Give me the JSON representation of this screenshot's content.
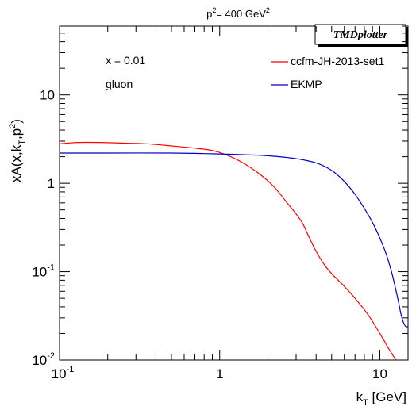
{
  "chart_data": {
    "type": "line",
    "title_base": "p",
    "title_sup": "2",
    "title_rest": "= 400 GeV",
    "title_sup2": "2",
    "badge": "TMDplotter",
    "xlabel_base": "k",
    "xlabel_sub": "T",
    "xlabel_rest": " [GeV]",
    "ylabel_parts": [
      "xA(x,k",
      "T",
      ",p",
      "2",
      ")"
    ],
    "x_scale": "log",
    "y_scale": "log",
    "xlim": [
      0.1,
      15
    ],
    "ylim": [
      0.01,
      60
    ],
    "x_ticks": [
      {
        "value": 0.1,
        "base": "10",
        "exp": "-1"
      },
      {
        "value": 1,
        "base": "1",
        "exp": ""
      },
      {
        "value": 10,
        "base": "10",
        "exp": ""
      }
    ],
    "y_ticks": [
      {
        "value": 0.01,
        "base": "10",
        "exp": "-2"
      },
      {
        "value": 0.1,
        "base": "10",
        "exp": "-1"
      },
      {
        "value": 1,
        "base": "1",
        "exp": ""
      },
      {
        "value": 10,
        "base": "10",
        "exp": ""
      }
    ],
    "annotations": [
      "x = 0.01",
      "gluon"
    ],
    "legend_position": "top-right",
    "series": [
      {
        "name": "ccfm-JH-2013-set1",
        "color": "#ff0000",
        "x": [
          0.1,
          0.13,
          0.18,
          0.25,
          0.35,
          0.5,
          0.7,
          0.9,
          1.1,
          1.4,
          1.8,
          2.2,
          2.6,
          3.0,
          3.3,
          3.6,
          4.0,
          4.5,
          5.0,
          6.0,
          7.0,
          8.5,
          10.0,
          11.5,
          12.6
        ],
        "y": [
          2.8,
          2.9,
          2.9,
          2.85,
          2.8,
          2.65,
          2.5,
          2.35,
          2.1,
          1.7,
          1.25,
          0.9,
          0.62,
          0.45,
          0.35,
          0.25,
          0.17,
          0.12,
          0.095,
          0.068,
          0.05,
          0.032,
          0.02,
          0.013,
          0.01
        ]
      },
      {
        "name": "EKMP",
        "color": "#0000cc",
        "x": [
          0.1,
          0.2,
          0.5,
          1.0,
          1.5,
          2.0,
          3.0,
          4.0,
          5.0,
          6.0,
          7.0,
          8.0,
          9.0,
          10.0,
          11.0,
          12.0,
          13.0,
          13.5,
          14.0,
          14.5,
          15.0
        ],
        "y": [
          2.2,
          2.2,
          2.2,
          2.15,
          2.1,
          2.05,
          1.9,
          1.7,
          1.4,
          1.05,
          0.75,
          0.52,
          0.36,
          0.24,
          0.155,
          0.09,
          0.048,
          0.034,
          0.027,
          0.024,
          0.024
        ]
      }
    ]
  }
}
